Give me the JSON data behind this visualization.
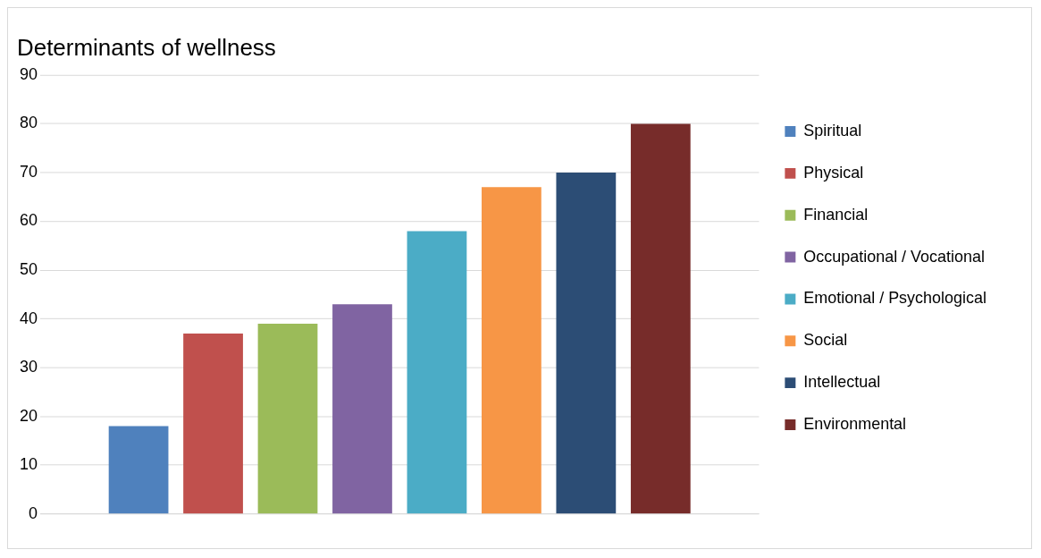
{
  "chart_data": {
    "type": "bar",
    "title": "Determinants of wellness",
    "categories": [
      null
    ],
    "series": [
      {
        "name": "Spiritual",
        "color": "#4f81bd",
        "values": [
          18
        ]
      },
      {
        "name": "Physical",
        "color": "#c0504d",
        "values": [
          37
        ]
      },
      {
        "name": "Financial",
        "color": "#9bbb59",
        "values": [
          39
        ]
      },
      {
        "name": "Occupational / Vocational",
        "color": "#8064a2",
        "values": [
          43
        ]
      },
      {
        "name": "Emotional / Psychological",
        "color": "#4bacc6",
        "values": [
          58
        ]
      },
      {
        "name": "Social",
        "color": "#f79646",
        "values": [
          67
        ]
      },
      {
        "name": "Intellectual",
        "color": "#2c4d75",
        "values": [
          70
        ]
      },
      {
        "name": "Environmental",
        "color": "#772c2a",
        "values": [
          80
        ]
      }
    ],
    "ylim": [
      0,
      90
    ],
    "yticks": [
      0,
      10,
      20,
      30,
      40,
      50,
      60,
      70,
      80,
      90
    ],
    "grid": "y",
    "legend": "right"
  }
}
